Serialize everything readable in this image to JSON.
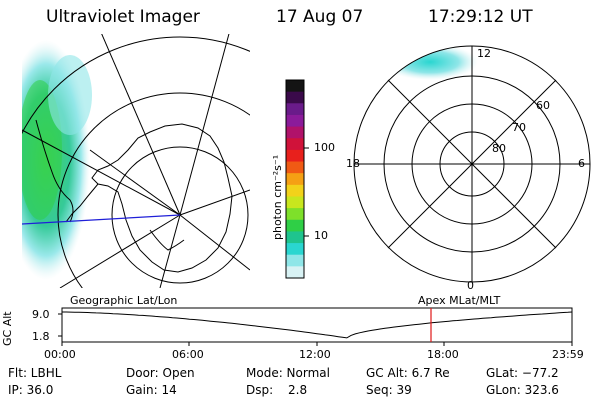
{
  "header": {
    "instrument": "Ultraviolet Imager",
    "date": "17 Aug 07",
    "time": "17:29:12 UT"
  },
  "colorbar": {
    "label": "photon cm⁻²s⁻¹",
    "ticks": [
      "100",
      "10"
    ],
    "colors": [
      "#141414",
      "#3a0a4a",
      "#6a1b8a",
      "#8b1b9a",
      "#b0126a",
      "#d0123a",
      "#e8201c",
      "#f05a14",
      "#f5a014",
      "#f2d21a",
      "#c8e61e",
      "#7ee02a",
      "#2fcf46",
      "#1fc48e",
      "#2ad6d0",
      "#8fe6e8",
      "#d8f2f4"
    ]
  },
  "left_map": {
    "label": "Geographic Lat/Lon"
  },
  "polar_plot": {
    "label": "Apex MLat/MLT",
    "mlt_labels": [
      "12",
      "6",
      "0",
      "18"
    ],
    "lat_labels": [
      "60",
      "70",
      "80"
    ]
  },
  "altitude_plot": {
    "ylabel": "GC Alt",
    "yticks": [
      "9.0",
      "1.8"
    ],
    "xticks": [
      "00:00",
      "06:00",
      "12:00",
      "18:00",
      "23:59"
    ]
  },
  "status": {
    "filter": "Flt: LBHL",
    "ip": "IP: 36.0",
    "door": "Door: Open",
    "gain": "Gain: 14",
    "mode": "Mode: Normal",
    "dsp_label": "Dsp:",
    "dsp_value": "2.8",
    "gc_alt": "GC Alt: 6.7 Re",
    "seq": "Seq: 39",
    "glat": "GLat: −77.2",
    "glon": "GLon: 323.6"
  }
}
